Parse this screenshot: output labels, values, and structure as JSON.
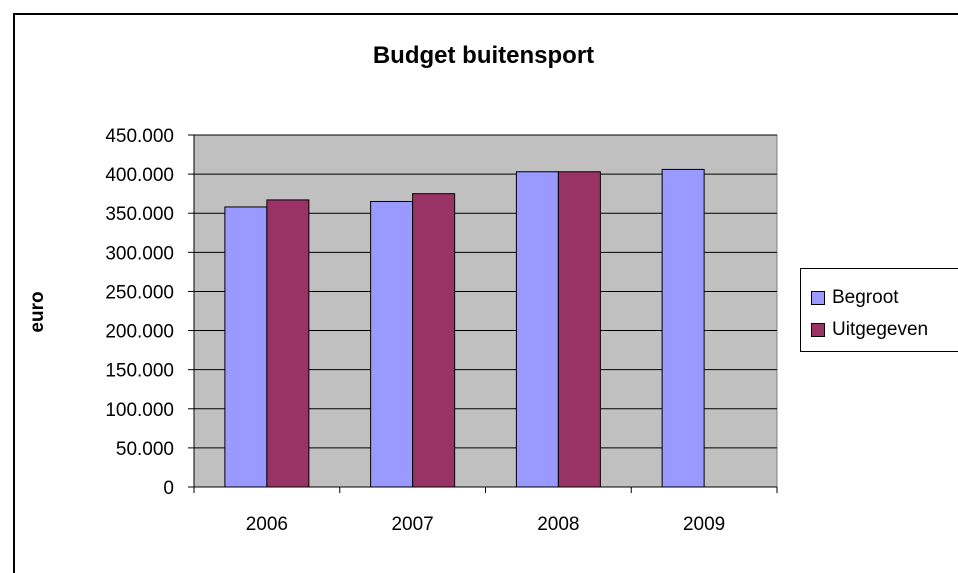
{
  "chart_data": {
    "type": "bar",
    "title": "Budget buitensport",
    "xlabel": "",
    "ylabel": "euro",
    "categories": [
      "2006",
      "2007",
      "2008",
      "2009"
    ],
    "series": [
      {
        "name": "Begroot",
        "color": "#9999ff",
        "values": [
          358000,
          365000,
          403000,
          406000
        ]
      },
      {
        "name": "Uitgegeven",
        "color": "#993366",
        "values": [
          367000,
          375000,
          403000,
          null
        ]
      }
    ],
    "ylim": [
      0,
      450000
    ],
    "yticks": [
      0,
      50000,
      100000,
      150000,
      200000,
      250000,
      300000,
      350000,
      400000,
      450000
    ],
    "ytick_labels": [
      "0",
      "50.000",
      "100.000",
      "150.000",
      "200.000",
      "250.000",
      "300.000",
      "350.000",
      "400.000",
      "450.000"
    ],
    "grid": true,
    "plot_background": "#c0c0c0",
    "legend_position": "right"
  }
}
